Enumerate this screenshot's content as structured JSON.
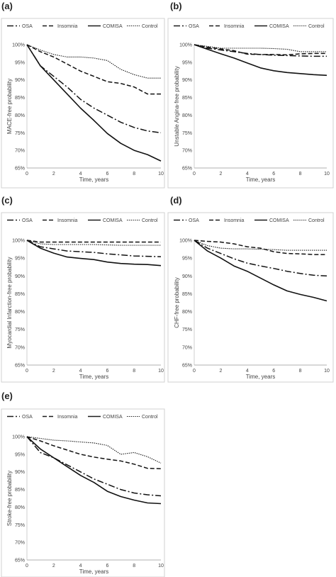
{
  "styles": {
    "OSA": "dashdot",
    "Insomnia": "dashed",
    "COMISA": "solid",
    "Control": "dotted"
  },
  "chart_data": [
    {
      "type": "line",
      "panel": "(a)",
      "xlabel": "Time, years",
      "ylabel": "MACE-free probability",
      "x": [
        0,
        1,
        2,
        3,
        4,
        5,
        6,
        7,
        8,
        9,
        10
      ],
      "x_ticks": [
        "0",
        "2",
        "4",
        "6",
        "8",
        "10"
      ],
      "ylim": [
        65,
        100
      ],
      "y_ticks": [
        "65%",
        "70%",
        "75%",
        "80%",
        "85%",
        "90%",
        "95%",
        "100%"
      ],
      "legend": [
        "OSA",
        "Insomnia",
        "COMISA",
        "Control"
      ],
      "series": [
        {
          "name": "OSA",
          "values": [
            100,
            94,
            91,
            88,
            84.5,
            82,
            80,
            78,
            76.5,
            75.5,
            75
          ]
        },
        {
          "name": "Insomnia",
          "values": [
            100,
            98,
            96.5,
            94.5,
            92.5,
            91,
            89.5,
            89,
            88,
            86,
            86
          ]
        },
        {
          "name": "COMISA",
          "values": [
            100,
            94,
            90,
            86,
            82,
            78.5,
            74.8,
            72,
            70,
            68.8,
            67
          ]
        },
        {
          "name": "Control",
          "values": [
            100,
            98.5,
            97.2,
            96.5,
            96.5,
            96.2,
            95.5,
            93,
            91.5,
            90.5,
            90.5
          ]
        }
      ]
    },
    {
      "type": "line",
      "panel": "(b)",
      "xlabel": "Time, years",
      "ylabel": "Unstable Angina-free probability",
      "x": [
        0,
        1,
        2,
        3,
        4,
        5,
        6,
        7,
        8,
        9,
        10
      ],
      "x_ticks": [
        "0",
        "2",
        "4",
        "6",
        "8",
        "10"
      ],
      "ylim": [
        65,
        100
      ],
      "y_ticks": [
        "65%",
        "70%",
        "75%",
        "80%",
        "85%",
        "90%",
        "95%",
        "100%"
      ],
      "legend": [
        "OSA",
        "Insomnia",
        "COMISA",
        "Control"
      ],
      "series": [
        {
          "name": "OSA",
          "values": [
            100,
            99,
            98.5,
            98,
            97.5,
            97.2,
            97,
            96.9,
            96.8,
            96.7,
            96.7
          ]
        },
        {
          "name": "Insomnia",
          "values": [
            100,
            99.3,
            98.8,
            98.3,
            97.3,
            97.2,
            97.2,
            97.1,
            97.4,
            97.5,
            97.5
          ]
        },
        {
          "name": "COMISA",
          "values": [
            100,
            98.7,
            97.4,
            96.2,
            94.8,
            93.4,
            92.6,
            92.1,
            91.8,
            91.5,
            91.3
          ]
        },
        {
          "name": "Control",
          "values": [
            100,
            99.5,
            99,
            99,
            99,
            99,
            98.9,
            98.7,
            98,
            98,
            98
          ]
        }
      ]
    },
    {
      "type": "line",
      "panel": "(c)",
      "xlabel": "Time, years",
      "ylabel": "Myocardial Infarction-free probability",
      "x": [
        0,
        1,
        2,
        3,
        4,
        5,
        6,
        7,
        8,
        9,
        10
      ],
      "x_ticks": [
        "0",
        "2",
        "4",
        "6",
        "8",
        "10"
      ],
      "ylim": [
        65,
        100
      ],
      "y_ticks": [
        "65%",
        "70%",
        "75%",
        "80%",
        "85%",
        "90%",
        "95%",
        "100%"
      ],
      "legend": [
        "OSA",
        "Insomnia",
        "COMISA",
        "Control"
      ],
      "series": [
        {
          "name": "OSA",
          "values": [
            100,
            98.2,
            97.6,
            97,
            96.8,
            96.6,
            96.2,
            95.9,
            95.6,
            95.5,
            95.4
          ]
        },
        {
          "name": "Insomnia",
          "values": [
            100,
            99.5,
            99.5,
            99.5,
            99.5,
            99.5,
            99.5,
            99.5,
            99.5,
            99.5,
            99.5
          ]
        },
        {
          "name": "COMISA",
          "values": [
            100,
            97.8,
            96.4,
            95.3,
            94.9,
            94.6,
            93.9,
            93.5,
            93.3,
            93.2,
            92.9
          ]
        },
        {
          "name": "Control",
          "values": [
            100,
            99,
            98.8,
            98.8,
            98.8,
            98.8,
            98.7,
            98.6,
            98.6,
            98.6,
            98.6
          ]
        }
      ]
    },
    {
      "type": "line",
      "panel": "(d)",
      "xlabel": "Time, years",
      "ylabel": "CHF-free probability",
      "x": [
        0,
        1,
        2,
        3,
        4,
        5,
        6,
        7,
        8,
        9,
        10
      ],
      "x_ticks": [
        "0",
        "2",
        "4",
        "6",
        "8",
        "10"
      ],
      "ylim": [
        65,
        100
      ],
      "y_ticks": [
        "65%",
        "70%",
        "75%",
        "80%",
        "85%",
        "90%",
        "95%",
        "100%"
      ],
      "legend": [
        "OSA",
        "Insomnia",
        "COMISA",
        "Control"
      ],
      "series": [
        {
          "name": "OSA",
          "values": [
            100,
            97.8,
            96.3,
            94.8,
            93.6,
            92.8,
            92.1,
            91.3,
            90.7,
            90.2,
            90
          ]
        },
        {
          "name": "Insomnia",
          "values": [
            100,
            99.7,
            99.5,
            99,
            98.2,
            97.8,
            96.8,
            96.3,
            96.2,
            96,
            96
          ]
        },
        {
          "name": "COMISA",
          "values": [
            100,
            97,
            95,
            92.8,
            91.3,
            89.4,
            87.5,
            85.8,
            84.8,
            84,
            83
          ]
        },
        {
          "name": "Control",
          "values": [
            100,
            98.5,
            97.8,
            97.6,
            97.6,
            97.5,
            97.4,
            97.2,
            97.2,
            97.2,
            97.2
          ]
        }
      ]
    },
    {
      "type": "line",
      "panel": "(e)",
      "xlabel": "Time, years",
      "ylabel": "Stroke-free probability",
      "x": [
        0,
        1,
        2,
        3,
        4,
        5,
        6,
        7,
        8,
        9,
        10
      ],
      "x_ticks": [
        "0",
        "2",
        "4",
        "6",
        "8",
        "10"
      ],
      "ylim": [
        65,
        100
      ],
      "y_ticks": [
        "65%",
        "70%",
        "75%",
        "80%",
        "85%",
        "90%",
        "95%",
        "100%"
      ],
      "legend": [
        "OSA",
        "Insomnia",
        "COMISA",
        "Control"
      ],
      "series": [
        {
          "name": "OSA",
          "values": [
            100,
            95.5,
            94,
            92,
            90,
            88,
            86.5,
            85,
            84,
            83.5,
            83.2
          ]
        },
        {
          "name": "Insomnia",
          "values": [
            100,
            98.8,
            97.4,
            96.2,
            95,
            94.2,
            93.6,
            93.1,
            92.2,
            91,
            90.9
          ]
        },
        {
          "name": "COMISA",
          "values": [
            100,
            96.5,
            94,
            91.5,
            89,
            87,
            84.5,
            83,
            82,
            81.2,
            81
          ]
        },
        {
          "name": "Control",
          "values": [
            100,
            99.5,
            99,
            98.8,
            98.5,
            98.2,
            97.5,
            95,
            95.5,
            94.3,
            92.5
          ]
        }
      ]
    }
  ]
}
